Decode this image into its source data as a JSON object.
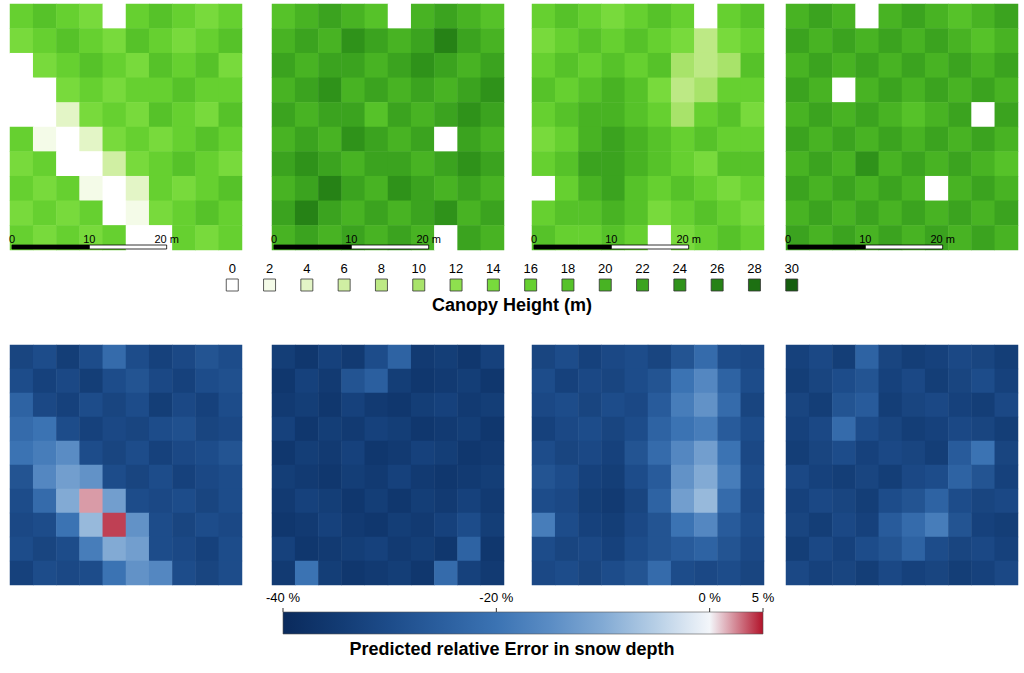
{
  "chart_data": [
    {
      "type": "heatmap",
      "tick_labels": false,
      "xlim": [
        0,
        30
      ],
      "scalebar": {
        "ticks": [
          0,
          10,
          {
            "value": 20,
            "label": "20 m"
          }
        ]
      },
      "panels": [
        [
          [
            16,
            18,
            16,
            14,
            0,
            16,
            18,
            16,
            14,
            16
          ],
          [
            14,
            16,
            18,
            16,
            14,
            18,
            16,
            14,
            16,
            18
          ],
          [
            0,
            14,
            16,
            18,
            16,
            14,
            18,
            16,
            18,
            14
          ],
          [
            0,
            0,
            14,
            16,
            14,
            16,
            16,
            18,
            16,
            16
          ],
          [
            0,
            0,
            4,
            14,
            16,
            14,
            18,
            16,
            14,
            18
          ],
          [
            16,
            2,
            0,
            4,
            14,
            16,
            14,
            16,
            18,
            16
          ],
          [
            14,
            16,
            0,
            0,
            6,
            14,
            16,
            18,
            16,
            14
          ],
          [
            16,
            14,
            16,
            2,
            0,
            4,
            16,
            14,
            16,
            18
          ],
          [
            14,
            16,
            14,
            16,
            0,
            2,
            14,
            16,
            18,
            16
          ],
          [
            16,
            14,
            16,
            14,
            16,
            0,
            0,
            16,
            14,
            16
          ]
        ],
        [
          [
            18,
            20,
            22,
            20,
            18,
            0,
            20,
            22,
            20,
            18
          ],
          [
            20,
            22,
            20,
            24,
            22,
            20,
            22,
            26,
            22,
            20
          ],
          [
            22,
            20,
            22,
            22,
            20,
            22,
            24,
            22,
            20,
            22
          ],
          [
            20,
            22,
            24,
            20,
            22,
            20,
            22,
            20,
            22,
            24
          ],
          [
            22,
            20,
            22,
            22,
            18,
            22,
            20,
            22,
            24,
            22
          ],
          [
            20,
            22,
            20,
            24,
            22,
            20,
            22,
            0,
            22,
            20
          ],
          [
            22,
            24,
            22,
            20,
            22,
            22,
            20,
            22,
            24,
            22
          ],
          [
            20,
            22,
            26,
            22,
            20,
            24,
            22,
            20,
            22,
            20
          ],
          [
            22,
            26,
            22,
            20,
            22,
            20,
            22,
            24,
            20,
            22
          ],
          [
            20,
            22,
            20,
            22,
            20,
            22,
            20,
            0,
            22,
            20
          ]
        ],
        [
          [
            16,
            18,
            16,
            14,
            16,
            18,
            16,
            0,
            16,
            18
          ],
          [
            14,
            16,
            18,
            16,
            18,
            16,
            14,
            8,
            14,
            16
          ],
          [
            16,
            18,
            16,
            18,
            16,
            18,
            10,
            8,
            10,
            18
          ],
          [
            18,
            16,
            18,
            20,
            18,
            14,
            8,
            10,
            16,
            16
          ],
          [
            16,
            18,
            20,
            20,
            18,
            16,
            10,
            16,
            18,
            14
          ],
          [
            14,
            16,
            20,
            22,
            20,
            18,
            16,
            18,
            16,
            16
          ],
          [
            16,
            18,
            22,
            22,
            20,
            18,
            16,
            14,
            18,
            18
          ],
          [
            0,
            16,
            20,
            22,
            18,
            16,
            18,
            16,
            14,
            16
          ],
          [
            16,
            18,
            18,
            20,
            18,
            14,
            16,
            18,
            16,
            14
          ],
          [
            18,
            16,
            16,
            18,
            16,
            0,
            14,
            16,
            18,
            16
          ]
        ],
        [
          [
            20,
            22,
            20,
            0,
            20,
            22,
            20,
            18,
            20,
            22
          ],
          [
            22,
            20,
            22,
            20,
            22,
            20,
            22,
            20,
            18,
            20
          ],
          [
            20,
            22,
            20,
            22,
            20,
            22,
            20,
            22,
            20,
            22
          ],
          [
            22,
            20,
            0,
            20,
            22,
            20,
            22,
            20,
            22,
            20
          ],
          [
            20,
            22,
            20,
            22,
            20,
            18,
            20,
            22,
            0,
            22
          ],
          [
            22,
            20,
            22,
            20,
            22,
            20,
            22,
            20,
            22,
            20
          ],
          [
            20,
            22,
            20,
            24,
            20,
            22,
            20,
            22,
            20,
            18
          ],
          [
            22,
            20,
            22,
            20,
            22,
            20,
            0,
            20,
            22,
            20
          ],
          [
            20,
            22,
            20,
            22,
            20,
            22,
            20,
            22,
            20,
            22
          ],
          [
            22,
            20,
            22,
            20,
            22,
            20,
            22,
            20,
            22,
            20
          ]
        ]
      ],
      "colorbar": {
        "title": "Canopy Height (m)",
        "ticks": [
          0,
          2,
          4,
          6,
          8,
          10,
          12,
          14,
          16,
          18,
          20,
          22,
          24,
          26,
          28,
          30
        ],
        "colors": [
          "#ffffff",
          "#f4fbe8",
          "#e3f5c6",
          "#d0efa3",
          "#bde985",
          "#a8e36a",
          "#8ee04e",
          "#78da3c",
          "#66d030",
          "#56c229",
          "#48b323",
          "#3ba31f",
          "#2f921a",
          "#268216",
          "#1d7012",
          "#145e0e"
        ]
      }
    },
    {
      "type": "heatmap",
      "tick_labels": false,
      "panels": [
        [
          [
            -32,
            -30,
            -34,
            -30,
            -22,
            -30,
            -33,
            -31,
            -28,
            -30
          ],
          [
            -30,
            -33,
            -31,
            -34,
            -30,
            -28,
            -31,
            -33,
            -30,
            -29
          ],
          [
            -24,
            -31,
            -33,
            -30,
            -32,
            -30,
            -34,
            -31,
            -33,
            -30
          ],
          [
            -22,
            -20,
            -30,
            -33,
            -31,
            -32,
            -30,
            -29,
            -32,
            -31
          ],
          [
            -20,
            -18,
            -15,
            -30,
            -32,
            -30,
            -33,
            -31,
            -30,
            -28
          ],
          [
            -28,
            -16,
            -12,
            -14,
            -30,
            -32,
            -30,
            -33,
            -31,
            -30
          ],
          [
            -30,
            -22,
            -10,
            2,
            -12,
            -30,
            -31,
            -30,
            -32,
            -30
          ],
          [
            -31,
            -30,
            -20,
            -8,
            4,
            -14,
            -30,
            -32,
            -30,
            -31
          ],
          [
            -30,
            -32,
            -30,
            -18,
            -10,
            -12,
            -30,
            -31,
            -33,
            -30
          ],
          [
            -33,
            -30,
            -31,
            -30,
            -20,
            -14,
            -16,
            -30,
            -32,
            -30
          ]
        ],
        [
          [
            -34,
            -36,
            -33,
            -35,
            -30,
            -24,
            -35,
            -34,
            -36,
            -33
          ],
          [
            -36,
            -33,
            -35,
            -28,
            -25,
            -34,
            -36,
            -35,
            -34,
            -36
          ],
          [
            -35,
            -34,
            -36,
            -33,
            -35,
            -36,
            -34,
            -33,
            -35,
            -34
          ],
          [
            -33,
            -36,
            -34,
            -35,
            -33,
            -34,
            -36,
            -35,
            -34,
            -36
          ],
          [
            -36,
            -34,
            -35,
            -33,
            -36,
            -35,
            -33,
            -34,
            -36,
            -35
          ],
          [
            -34,
            -35,
            -36,
            -34,
            -35,
            -33,
            -35,
            -36,
            -35,
            -34
          ],
          [
            -35,
            -33,
            -34,
            -36,
            -34,
            -36,
            -34,
            -35,
            -33,
            -35
          ],
          [
            -36,
            -35,
            -33,
            -35,
            -36,
            -34,
            -35,
            -33,
            -30,
            -34
          ],
          [
            -33,
            -36,
            -35,
            -34,
            -33,
            -35,
            -34,
            -36,
            -24,
            -36
          ],
          [
            -35,
            -20,
            -34,
            -36,
            -35,
            -34,
            -36,
            -22,
            -33,
            -35
          ]
        ],
        [
          [
            -32,
            -30,
            -33,
            -31,
            -30,
            -32,
            -28,
            -22,
            -30,
            -31
          ],
          [
            -30,
            -33,
            -31,
            -32,
            -30,
            -28,
            -20,
            -16,
            -24,
            -30
          ],
          [
            -31,
            -30,
            -32,
            -30,
            -31,
            -26,
            -18,
            -14,
            -22,
            -32
          ],
          [
            -33,
            -31,
            -30,
            -32,
            -30,
            -24,
            -20,
            -18,
            -26,
            -30
          ],
          [
            -30,
            -32,
            -31,
            -33,
            -28,
            -22,
            -16,
            -12,
            -20,
            -31
          ],
          [
            -28,
            -30,
            -33,
            -34,
            -30,
            -26,
            -14,
            -10,
            -18,
            -30
          ],
          [
            -30,
            -31,
            -34,
            -35,
            -32,
            -24,
            -12,
            -8,
            -22,
            -31
          ],
          [
            -18,
            -30,
            -33,
            -34,
            -31,
            -28,
            -20,
            -16,
            -26,
            -30
          ],
          [
            -30,
            -32,
            -31,
            -33,
            -30,
            -28,
            -26,
            -24,
            -28,
            -31
          ],
          [
            -31,
            -30,
            -32,
            -30,
            -28,
            -22,
            -30,
            -31,
            -30,
            -32
          ]
        ],
        [
          [
            -33,
            -31,
            -34,
            -24,
            -32,
            -34,
            -33,
            -31,
            -32,
            -34
          ],
          [
            -34,
            -32,
            -30,
            -28,
            -33,
            -31,
            -34,
            -32,
            -30,
            -33
          ],
          [
            -32,
            -34,
            -28,
            -26,
            -34,
            -32,
            -31,
            -33,
            -34,
            -31
          ],
          [
            -33,
            -31,
            -22,
            -30,
            -32,
            -34,
            -33,
            -31,
            -32,
            -34
          ],
          [
            -34,
            -32,
            -30,
            -33,
            -31,
            -32,
            -34,
            -26,
            -20,
            -32
          ],
          [
            -31,
            -33,
            -34,
            -32,
            -34,
            -31,
            -30,
            -24,
            -28,
            -33
          ],
          [
            -33,
            -31,
            -32,
            -34,
            -30,
            -28,
            -24,
            -30,
            -32,
            -31
          ],
          [
            -32,
            -34,
            -31,
            -33,
            -26,
            -22,
            -18,
            -28,
            -33,
            -34
          ],
          [
            -34,
            -31,
            -33,
            -30,
            -28,
            -24,
            -30,
            -32,
            -31,
            -33
          ],
          [
            -31,
            -33,
            -32,
            -34,
            -31,
            -33,
            -32,
            -34,
            -33,
            -31
          ]
        ]
      ],
      "colorbar": {
        "title": "Predicted relative Error in snow depth",
        "range": [
          -40,
          5
        ],
        "ticks": [
          {
            "value": -40,
            "label": "-40 %"
          },
          {
            "value": -20,
            "label": "-20 %"
          },
          {
            "value": 0,
            "label": "0 %"
          },
          {
            "value": 5,
            "label": "5 %"
          }
        ],
        "colors": [
          "#0a2a5c",
          "#123a72",
          "#1d4c8a",
          "#2b5f9f",
          "#3b73b3",
          "#5a8cc4",
          "#82aad4",
          "#b7cfe6",
          "#f3f6fa",
          "#b2132a"
        ]
      }
    }
  ]
}
